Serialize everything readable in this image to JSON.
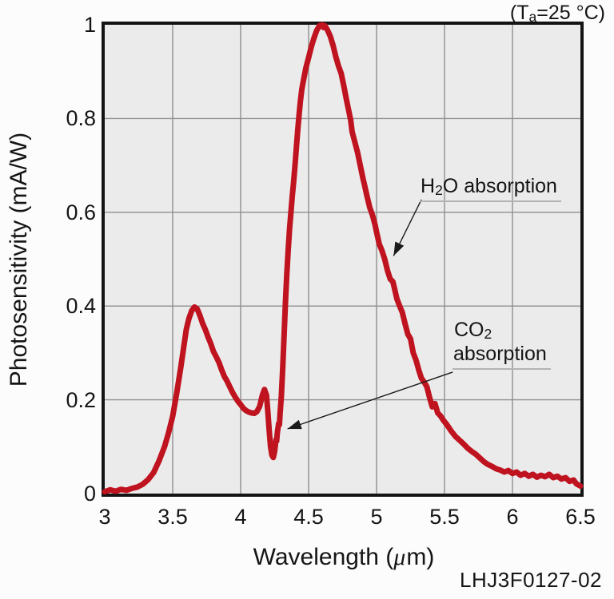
{
  "labels": {
    "condition": {
      "pre": "(T",
      "sub": "a",
      "post": "=25 °C)"
    },
    "part_number": "LHJ3F0127-02",
    "xlabel_parts": {
      "pre": "Wavelength (",
      "italic": "μ",
      "post": "m)"
    }
  },
  "chart_data": {
    "type": "line",
    "title": "",
    "condition": "(Ta=25 °C)",
    "xlabel": "Wavelength (μm)",
    "ylabel": "Photosensitivity (mA/W)",
    "xlim": [
      3,
      6.5
    ],
    "ylim": [
      0,
      1
    ],
    "x_ticks": [
      3,
      3.5,
      4,
      4.5,
      5,
      5.5,
      6,
      6.5
    ],
    "x_tick_labels": [
      "3",
      "3.5",
      "4",
      "4.5",
      "5",
      "5.5",
      "6",
      "6.5"
    ],
    "y_ticks": [
      0,
      0.2,
      0.4,
      0.6,
      0.8,
      1
    ],
    "y_tick_labels": [
      "0",
      "0.2",
      "0.4",
      "0.6",
      "0.8",
      "1"
    ],
    "grid": true,
    "grid_color": "#8f8f8f",
    "plot_bg_color": "#ebebeb",
    "line_color": "#bf131f",
    "series": [
      {
        "name": "photosensitivity",
        "points": [
          [
            3.0,
            0.004
          ],
          [
            3.04,
            0.008
          ],
          [
            3.08,
            0.005
          ],
          [
            3.12,
            0.009
          ],
          [
            3.16,
            0.007
          ],
          [
            3.2,
            0.011
          ],
          [
            3.24,
            0.014
          ],
          [
            3.28,
            0.02
          ],
          [
            3.32,
            0.03
          ],
          [
            3.36,
            0.045
          ],
          [
            3.4,
            0.07
          ],
          [
            3.44,
            0.1
          ],
          [
            3.47,
            0.13
          ],
          [
            3.5,
            0.165
          ],
          [
            3.53,
            0.215
          ],
          [
            3.56,
            0.27
          ],
          [
            3.58,
            0.31
          ],
          [
            3.6,
            0.35
          ],
          [
            3.62,
            0.374
          ],
          [
            3.64,
            0.39
          ],
          [
            3.66,
            0.398
          ],
          [
            3.68,
            0.394
          ],
          [
            3.7,
            0.38
          ],
          [
            3.72,
            0.363
          ],
          [
            3.74,
            0.35
          ],
          [
            3.76,
            0.334
          ],
          [
            3.78,
            0.32
          ],
          [
            3.8,
            0.303
          ],
          [
            3.82,
            0.292
          ],
          [
            3.84,
            0.28
          ],
          [
            3.86,
            0.264
          ],
          [
            3.88,
            0.25
          ],
          [
            3.9,
            0.24
          ],
          [
            3.92,
            0.228
          ],
          [
            3.94,
            0.216
          ],
          [
            3.96,
            0.206
          ],
          [
            3.98,
            0.197
          ],
          [
            4.0,
            0.19
          ],
          [
            4.02,
            0.182
          ],
          [
            4.04,
            0.177
          ],
          [
            4.06,
            0.174
          ],
          [
            4.08,
            0.172
          ],
          [
            4.1,
            0.171
          ],
          [
            4.12,
            0.175
          ],
          [
            4.14,
            0.186
          ],
          [
            4.16,
            0.21
          ],
          [
            4.175,
            0.222
          ],
          [
            4.19,
            0.21
          ],
          [
            4.2,
            0.175
          ],
          [
            4.21,
            0.135
          ],
          [
            4.22,
            0.1
          ],
          [
            4.23,
            0.082
          ],
          [
            4.24,
            0.077
          ],
          [
            4.25,
            0.09
          ],
          [
            4.26,
            0.115
          ],
          [
            4.265,
            0.112
          ],
          [
            4.27,
            0.13
          ],
          [
            4.28,
            0.15
          ],
          [
            4.285,
            0.147
          ],
          [
            4.29,
            0.17
          ],
          [
            4.3,
            0.21
          ],
          [
            4.31,
            0.27
          ],
          [
            4.32,
            0.34
          ],
          [
            4.33,
            0.41
          ],
          [
            4.34,
            0.47
          ],
          [
            4.35,
            0.52
          ],
          [
            4.36,
            0.565
          ],
          [
            4.37,
            0.6
          ],
          [
            4.38,
            0.635
          ],
          [
            4.39,
            0.665
          ],
          [
            4.4,
            0.7
          ],
          [
            4.41,
            0.738
          ],
          [
            4.42,
            0.775
          ],
          [
            4.43,
            0.808
          ],
          [
            4.44,
            0.838
          ],
          [
            4.45,
            0.862
          ],
          [
            4.46,
            0.878
          ],
          [
            4.48,
            0.908
          ],
          [
            4.5,
            0.93
          ],
          [
            4.52,
            0.953
          ],
          [
            4.54,
            0.972
          ],
          [
            4.56,
            0.988
          ],
          [
            4.58,
            0.998
          ],
          [
            4.6,
            1.0
          ],
          [
            4.61,
            0.994
          ],
          [
            4.62,
            0.998
          ],
          [
            4.64,
            0.988
          ],
          [
            4.66,
            0.975
          ],
          [
            4.68,
            0.956
          ],
          [
            4.7,
            0.932
          ],
          [
            4.72,
            0.912
          ],
          [
            4.74,
            0.896
          ],
          [
            4.76,
            0.868
          ],
          [
            4.78,
            0.838
          ],
          [
            4.79,
            0.824
          ],
          [
            4.81,
            0.796
          ],
          [
            4.82,
            0.772
          ],
          [
            4.84,
            0.75
          ],
          [
            4.86,
            0.728
          ],
          [
            4.88,
            0.7
          ],
          [
            4.9,
            0.672
          ],
          [
            4.91,
            0.66
          ],
          [
            4.93,
            0.634
          ],
          [
            4.95,
            0.61
          ],
          [
            4.97,
            0.594
          ],
          [
            4.99,
            0.572
          ],
          [
            5.0,
            0.558
          ],
          [
            5.02,
            0.532
          ],
          [
            5.04,
            0.518
          ],
          [
            5.06,
            0.5
          ],
          [
            5.08,
            0.476
          ],
          [
            5.1,
            0.458
          ],
          [
            5.12,
            0.452
          ],
          [
            5.13,
            0.44
          ],
          [
            5.15,
            0.415
          ],
          [
            5.17,
            0.4
          ],
          [
            5.19,
            0.386
          ],
          [
            5.21,
            0.362
          ],
          [
            5.23,
            0.34
          ],
          [
            5.25,
            0.33
          ],
          [
            5.27,
            0.3
          ],
          [
            5.29,
            0.285
          ],
          [
            5.31,
            0.264
          ],
          [
            5.33,
            0.246
          ],
          [
            5.35,
            0.238
          ],
          [
            5.37,
            0.228
          ],
          [
            5.39,
            0.205
          ],
          [
            5.41,
            0.185
          ],
          [
            5.43,
            0.192
          ],
          [
            5.45,
            0.172
          ],
          [
            5.47,
            0.166
          ],
          [
            5.49,
            0.157
          ],
          [
            5.52,
            0.146
          ],
          [
            5.55,
            0.133
          ],
          [
            5.58,
            0.122
          ],
          [
            5.61,
            0.114
          ],
          [
            5.64,
            0.106
          ],
          [
            5.67,
            0.097
          ],
          [
            5.7,
            0.09
          ],
          [
            5.73,
            0.084
          ],
          [
            5.76,
            0.076
          ],
          [
            5.79,
            0.068
          ],
          [
            5.82,
            0.062
          ],
          [
            5.85,
            0.058
          ],
          [
            5.88,
            0.053
          ],
          [
            5.91,
            0.05
          ],
          [
            5.94,
            0.046
          ],
          [
            5.97,
            0.049
          ],
          [
            6.0,
            0.043
          ],
          [
            6.03,
            0.046
          ],
          [
            6.06,
            0.039
          ],
          [
            6.09,
            0.043
          ],
          [
            6.12,
            0.037
          ],
          [
            6.15,
            0.041
          ],
          [
            6.18,
            0.035
          ],
          [
            6.21,
            0.039
          ],
          [
            6.24,
            0.036
          ],
          [
            6.27,
            0.041
          ],
          [
            6.3,
            0.034
          ],
          [
            6.33,
            0.037
          ],
          [
            6.36,
            0.031
          ],
          [
            6.39,
            0.034
          ],
          [
            6.42,
            0.026
          ],
          [
            6.45,
            0.029
          ],
          [
            6.47,
            0.021
          ],
          [
            6.5,
            0.016
          ]
        ]
      }
    ],
    "annotations": [
      {
        "id": "h2o-absorption",
        "pre": "H",
        "sub": "2",
        "post": "O absorption",
        "leader_start": [
          5.33,
          0.627
        ],
        "target": [
          5.125,
          0.507
        ]
      },
      {
        "id": "co2-absorption",
        "pre": "CO",
        "sub": "2",
        "post": "absorption",
        "leader_start": [
          5.56,
          0.259
        ],
        "target": [
          4.345,
          0.138
        ]
      }
    ],
    "legend": false
  }
}
